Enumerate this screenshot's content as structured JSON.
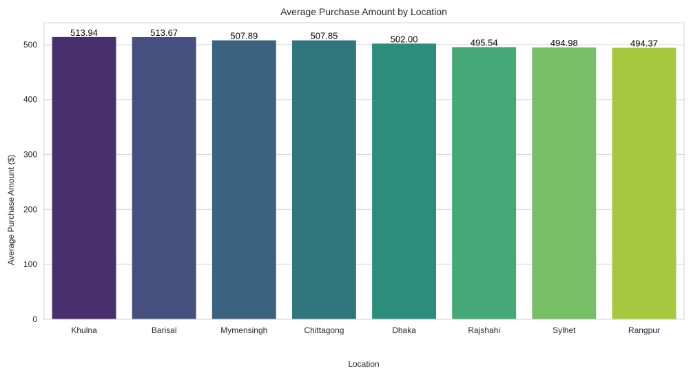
{
  "chart_data": {
    "type": "bar",
    "title": "Average Purchase Amount by Location",
    "xlabel": "Location",
    "ylabel": "Average Purchase Amount ($)",
    "categories": [
      "Khulna",
      "Barisal",
      "Mymensingh",
      "Chittagong",
      "Dhaka",
      "Rajshahi",
      "Sylhet",
      "Rangpur"
    ],
    "values": [
      513.94,
      513.67,
      507.89,
      507.85,
      502.0,
      495.54,
      494.98,
      494.37
    ],
    "value_labels": [
      "513.94",
      "513.67",
      "507.89",
      "507.85",
      "502.00",
      "495.54",
      "494.98",
      "494.37"
    ],
    "colors": [
      "#48306f",
      "#45507f",
      "#3b6380",
      "#31767c",
      "#2d8d7c",
      "#45a876",
      "#77be66",
      "#a7c740"
    ],
    "ylim": [
      0,
      540
    ],
    "yticks": [
      0,
      100,
      200,
      300,
      400,
      500
    ],
    "grid": true,
    "legend": "none"
  }
}
